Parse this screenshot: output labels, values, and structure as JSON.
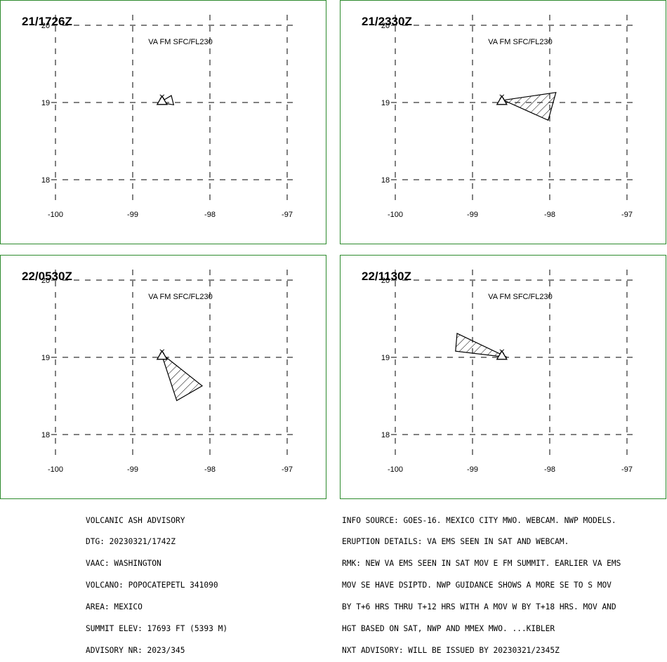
{
  "panels": [
    {
      "id": "p1",
      "time": "21/1726Z",
      "layer": "VA FM SFC/FL230",
      "ash_polygon": [
        [
          -98.65,
          19.0
        ],
        [
          -98.5,
          19.09
        ],
        [
          -98.47,
          18.97
        ]
      ],
      "ash_filled": false
    },
    {
      "id": "p2",
      "time": "21/2330Z",
      "layer": "VA FM SFC/FL230",
      "ash_polygon": [
        [
          -98.6,
          19.03
        ],
        [
          -97.92,
          19.13
        ],
        [
          -98.02,
          18.77
        ]
      ],
      "ash_filled": true
    },
    {
      "id": "p3",
      "time": "22/0530Z",
      "layer": "VA FM SFC/FL230",
      "ash_polygon": [
        [
          -98.63,
          19.05
        ],
        [
          -98.1,
          18.63
        ],
        [
          -98.43,
          18.44
        ]
      ],
      "ash_filled": true
    },
    {
      "id": "p4",
      "time": "22/1130Z",
      "layer": "VA FM SFC/FL230",
      "ash_polygon": [
        [
          -98.55,
          19.0
        ],
        [
          -99.2,
          19.31
        ],
        [
          -99.22,
          19.08
        ]
      ],
      "ash_filled": true
    }
  ],
  "map": {
    "volcano_lon": -98.62,
    "volcano_lat": 19.02,
    "lon_ticks": [
      "-100",
      "-99",
      "-98",
      "-97"
    ],
    "lat_ticks": [
      "20",
      "19",
      "18"
    ],
    "lon_values": [
      -100,
      -99,
      -98,
      -97
    ],
    "lat_values": [
      20,
      19,
      18
    ],
    "frame_color": "#2e8b2e"
  },
  "advisory_left": [
    "VOLCANIC ASH ADVISORY",
    "DTG: 20230321/1742Z",
    "VAAC: WASHINGTON",
    "VOLCANO: POPOCATEPETL 341090",
    "AREA: MEXICO",
    "SUMMIT ELEV: 17693 FT (5393 M)",
    "ADVISORY NR: 2023/345"
  ],
  "advisory_right": [
    "INFO SOURCE: GOES-16. MEXICO CITY MWO. WEBCAM. NWP MODELS.",
    "ERUPTION DETAILS: VA EMS SEEN IN SAT AND WEBCAM.",
    "RMK: NEW VA EMS SEEN IN SAT MOV E FM SUMMIT. EARLIER VA EMS",
    "MOV SE HAVE DSIPTD. NWP GUIDANCE SHOWS A MORE SE TO S MOV",
    "BY T+6 HRS THRU T+12 HRS WITH A MOV W BY T+18 HRS. MOV AND",
    "HGT BASED ON SAT, NWP AND MMEX MWO. ...KIBLER",
    "NXT ADVISORY: WILL BE ISSUED BY 20230321/2345Z"
  ]
}
